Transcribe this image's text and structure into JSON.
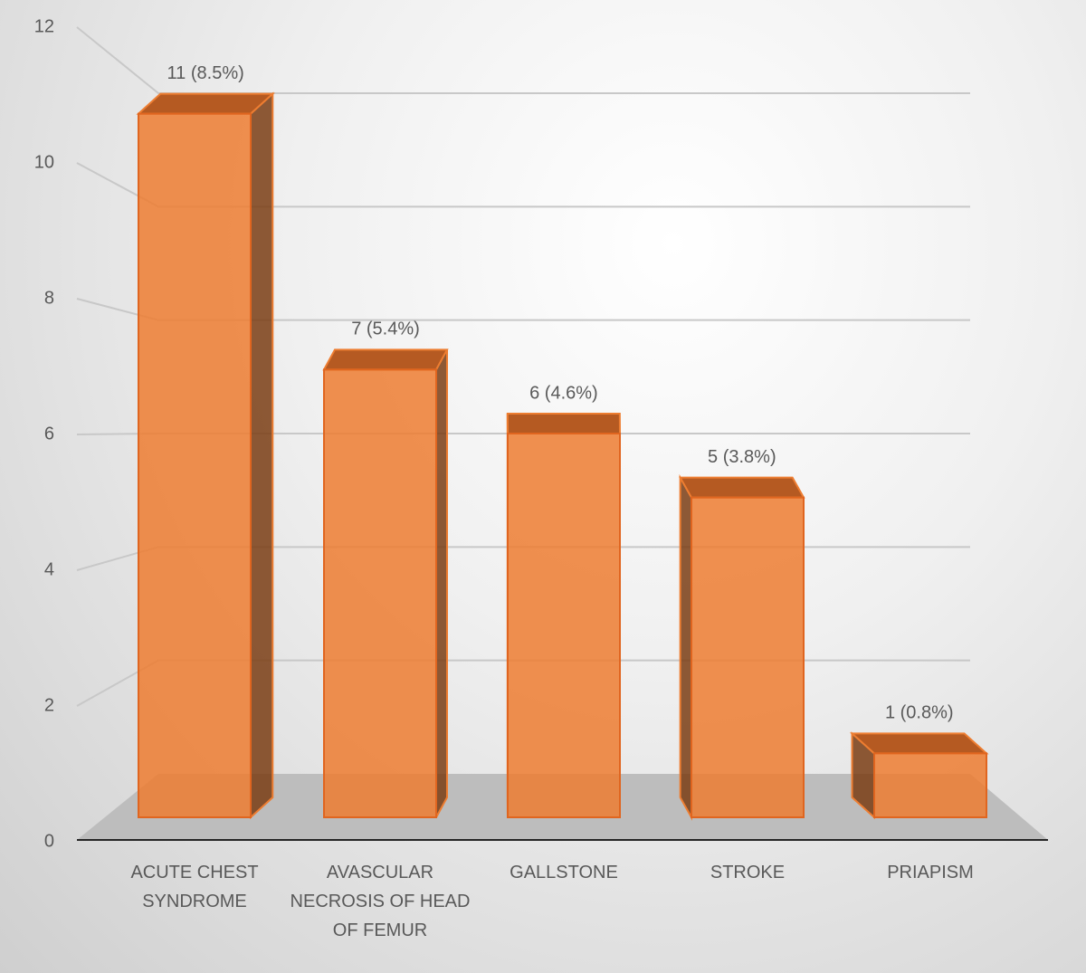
{
  "chart_data": {
    "type": "bar",
    "categories": [
      "ACUTE CHEST SYNDROME",
      "AVASCULAR NECROSIS OF HEAD OF FEMUR",
      "GALLSTONE",
      "STROKE",
      "PRIAPISM"
    ],
    "values": [
      11,
      7,
      6,
      5,
      1
    ],
    "value_labels": [
      "11 (8.5%)",
      "7 (5.4%)",
      "6 (4.6%)",
      "5 (3.8%)",
      "1 (0.8%)"
    ],
    "color": "#ed7d31",
    "ylim": [
      0,
      12
    ],
    "yticks": [
      0,
      2,
      4,
      6,
      8,
      10,
      12
    ],
    "grid": true
  }
}
